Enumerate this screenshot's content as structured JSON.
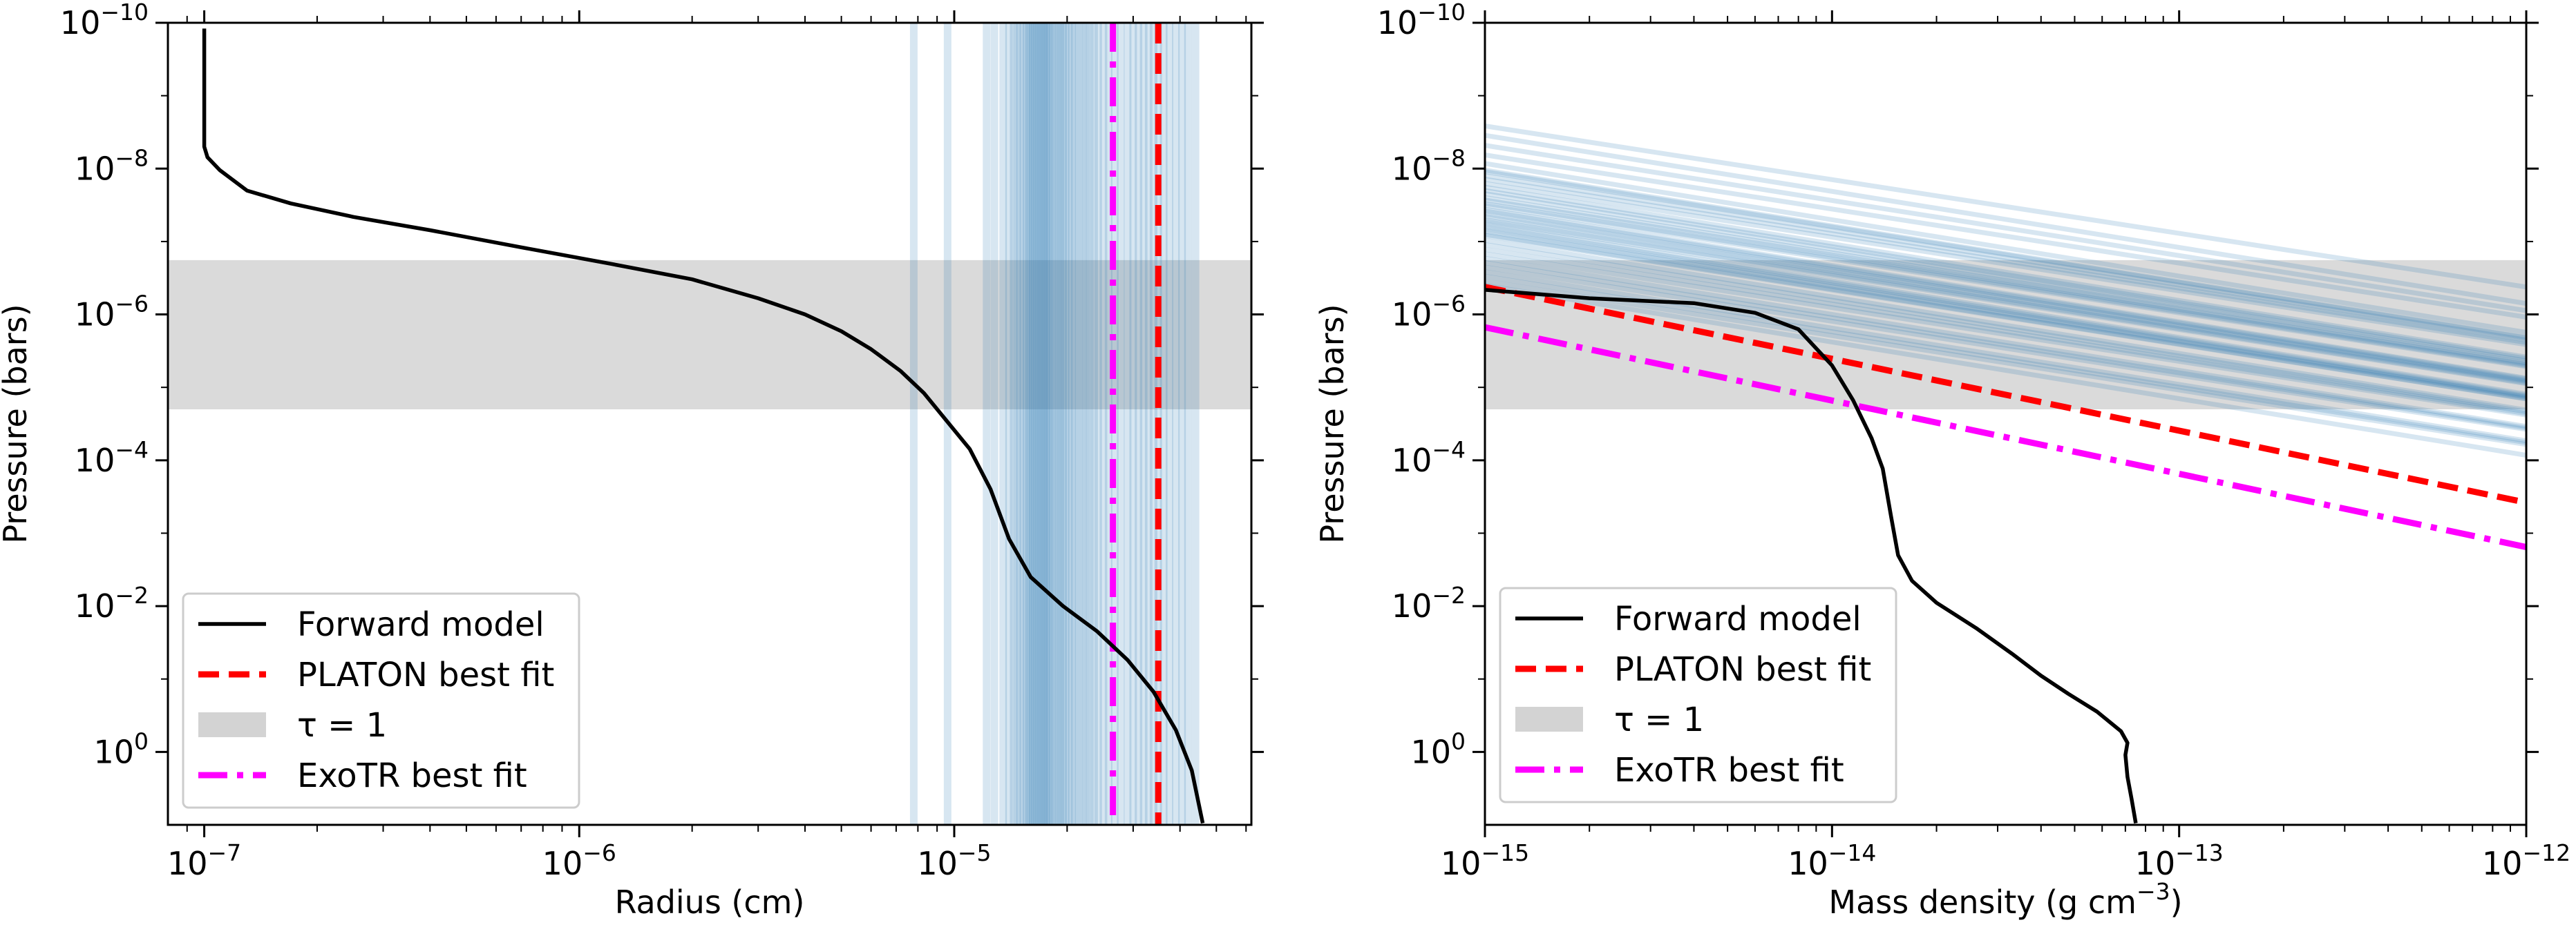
{
  "chart_data": [
    {
      "type": "line",
      "id": "left",
      "xlabel": "Radius (cm)",
      "ylabel": "Pressure (bars)",
      "xscale": "log",
      "yscale": "log",
      "xlim": [
        8e-08,
        6.2e-05
      ],
      "ylim": [
        10,
        1e-10
      ],
      "x_ticks": [
        {
          "value": 1e-07,
          "label": "10",
          "exp": "−7"
        },
        {
          "value": 1e-06,
          "label": "10",
          "exp": "−6"
        },
        {
          "value": 1e-05,
          "label": "10",
          "exp": "−5"
        }
      ],
      "y_ticks": [
        {
          "value": 1e-10,
          "label": "10",
          "exp": "−10"
        },
        {
          "value": 1e-08,
          "label": "10",
          "exp": "−8"
        },
        {
          "value": 1e-06,
          "label": "10",
          "exp": "−6"
        },
        {
          "value": 0.0001,
          "label": "10",
          "exp": "−4"
        },
        {
          "value": 0.01,
          "label": "10",
          "exp": "−2"
        },
        {
          "value": 1,
          "label": "10",
          "exp": "0"
        }
      ],
      "tau_band": {
        "p_top": 1.8e-07,
        "p_bottom": 2e-05
      },
      "forward_model": {
        "points": [
          [
            1e-07,
            1.2e-10
          ],
          [
            1e-07,
            5e-09
          ],
          [
            1.02e-07,
            7e-09
          ],
          [
            1.1e-07,
            1.05e-08
          ],
          [
            1.3e-07,
            2e-08
          ],
          [
            1.7e-07,
            3e-08
          ],
          [
            2.5e-07,
            4.6e-08
          ],
          [
            4e-07,
            7e-08
          ],
          [
            7e-07,
            1.2e-07
          ],
          [
            1.2e-06,
            2e-07
          ],
          [
            2e-06,
            3.3e-07
          ],
          [
            3e-06,
            6e-07
          ],
          [
            4e-06,
            1e-06
          ],
          [
            5e-06,
            1.7e-06
          ],
          [
            6e-06,
            3e-06
          ],
          [
            7.2e-06,
            6e-06
          ],
          [
            8.3e-06,
            1.2e-05
          ],
          [
            9.5e-06,
            2.8e-05
          ],
          [
            1.1e-05,
            7e-05
          ],
          [
            1.25e-05,
            0.00025
          ],
          [
            1.4e-05,
            0.0012
          ],
          [
            1.6e-05,
            0.004
          ],
          [
            1.95e-05,
            0.01
          ],
          [
            2.4e-05,
            0.022
          ],
          [
            2.9e-05,
            0.055
          ],
          [
            3.4e-05,
            0.15
          ],
          [
            3.9e-05,
            0.5
          ],
          [
            4.3e-05,
            1.8
          ],
          [
            4.6e-05,
            9.5
          ]
        ]
      },
      "platon_best_fit": {
        "x": 3.5e-05
      },
      "exotr_best_fit": {
        "x": 2.65e-05
      },
      "posterior_samples": {
        "x": [
          7.8e-06,
          9.6e-06,
          1.22e-05,
          1.28e-05,
          1.35e-05,
          1.4e-05,
          1.44e-05,
          1.47e-05,
          1.5e-05,
          1.53e-05,
          1.56e-05,
          1.58e-05,
          1.6e-05,
          1.62e-05,
          1.64e-05,
          1.66e-05,
          1.68e-05,
          1.7e-05,
          1.72e-05,
          1.74e-05,
          1.76e-05,
          1.78e-05,
          1.8e-05,
          1.83e-05,
          1.86e-05,
          1.89e-05,
          1.92e-05,
          1.95e-05,
          1.98e-05,
          2.02e-05,
          2.06e-05,
          2.1e-05,
          2.15e-05,
          2.2e-05,
          2.25e-05,
          2.3e-05,
          2.36e-05,
          2.42e-05,
          2.5e-05,
          2.58e-05,
          2.68e-05,
          2.78e-05,
          2.9e-05,
          3e-05,
          3.1e-05,
          3.2e-05,
          3.3e-05,
          3.4e-05,
          3.5e-05,
          3.62e-05,
          3.75e-05,
          3.9e-05,
          4.05e-05,
          4.2e-05,
          4.4e-05
        ]
      },
      "legend": {
        "location": "lower-left",
        "entries": [
          {
            "key": "forward",
            "label": "Forward model"
          },
          {
            "key": "platon",
            "label": "PLATON best fit"
          },
          {
            "key": "tau",
            "label": "τ = 1"
          },
          {
            "key": "exotr",
            "label": "ExoTR best fit"
          }
        ]
      }
    },
    {
      "type": "line",
      "id": "right",
      "xlabel": "Mass density (g cm",
      "xlabel_exp": "−3",
      "xlabel_close": ")",
      "ylabel": "Pressure (bars)",
      "xscale": "log",
      "yscale": "log",
      "xlim": [
        1e-15,
        1e-12
      ],
      "ylim": [
        10,
        1e-10
      ],
      "x_ticks": [
        {
          "value": 1e-15,
          "label": "10",
          "exp": "−15"
        },
        {
          "value": 1e-14,
          "label": "10",
          "exp": "−14"
        },
        {
          "value": 1e-13,
          "label": "10",
          "exp": "−13"
        },
        {
          "value": 1e-12,
          "label": "10",
          "exp": "−12"
        }
      ],
      "y_ticks": [
        {
          "value": 1e-10,
          "label": "10",
          "exp": "−10"
        },
        {
          "value": 1e-08,
          "label": "10",
          "exp": "−8"
        },
        {
          "value": 1e-06,
          "label": "10",
          "exp": "−6"
        },
        {
          "value": 0.0001,
          "label": "10",
          "exp": "−4"
        },
        {
          "value": 0.01,
          "label": "10",
          "exp": "−2"
        },
        {
          "value": 1,
          "label": "10",
          "exp": "0"
        }
      ],
      "tau_band": {
        "p_top": 1.8e-07,
        "p_bottom": 2e-05
      },
      "forward_model": {
        "points": [
          [
            1e-15,
            4.6e-07
          ],
          [
            2e-15,
            6e-07
          ],
          [
            4e-15,
            7e-07
          ],
          [
            6e-15,
            9.5e-07
          ],
          [
            8e-15,
            1.6e-06
          ],
          [
            1e-14,
            5e-06
          ],
          [
            1.15e-14,
            1.5e-05
          ],
          [
            1.3e-14,
            5e-05
          ],
          [
            1.4e-14,
            0.00013
          ],
          [
            1.48e-14,
            0.0006
          ],
          [
            1.55e-14,
            0.002
          ],
          [
            1.7e-14,
            0.0045
          ],
          [
            2e-14,
            0.009
          ],
          [
            2.6e-14,
            0.02
          ],
          [
            3.3e-14,
            0.045
          ],
          [
            4e-14,
            0.09
          ],
          [
            4.8e-14,
            0.16
          ],
          [
            5.8e-14,
            0.28
          ],
          [
            6.8e-14,
            0.52
          ],
          [
            7.1e-14,
            0.75
          ],
          [
            7e-14,
            1.1
          ],
          [
            7.1e-14,
            2.2
          ],
          [
            7.3e-14,
            4.5
          ],
          [
            7.5e-14,
            9.5
          ]
        ]
      },
      "platon_best_fit": {
        "p_at_xmin": 4.2e-07,
        "p_at_xmax": 0.00038
      },
      "exotr_best_fit": {
        "p_at_xmin": 1.5e-06,
        "p_at_xmax": 0.00155
      },
      "posterior_samples": {
        "p_at_xmin": [
          2.6e-09,
          3.5e-09,
          4.8e-09,
          6.5e-09,
          8.5e-09,
          1.1e-08,
          1.4e-08,
          1.8e-08,
          2.2e-08,
          2.7e-08,
          3.2e-08,
          3.8e-08,
          4.5e-08,
          5.3e-08,
          6.2e-08,
          7.2e-08,
          8.3e-08,
          9.6e-08,
          1.1e-07,
          1.28e-07,
          1.48e-07,
          1.7e-07,
          1.95e-07,
          2.25e-07,
          2.6e-07,
          3e-07,
          3.5e-07,
          4e-07,
          1.05e-08,
          1.25e-08,
          1.6e-08,
          2e-08,
          2.5e-08,
          3e-08,
          3.6e-08,
          4.2e-08,
          5e-08,
          5.8e-08,
          6.8e-08,
          8e-08
        ],
        "p_at_xmax": 8e-05
      },
      "legend": {
        "location": "lower-left",
        "entries": [
          {
            "key": "forward",
            "label": "Forward model"
          },
          {
            "key": "platon",
            "label": "PLATON best fit"
          },
          {
            "key": "tau",
            "label": "τ = 1"
          },
          {
            "key": "exotr",
            "label": "ExoTR best fit"
          }
        ]
      }
    }
  ],
  "colors": {
    "forward": "#000000",
    "platon": "#ff0000",
    "exotr": "#ff00ff",
    "tau_band": "#d3d3d3",
    "samples": "#1f77b4"
  }
}
